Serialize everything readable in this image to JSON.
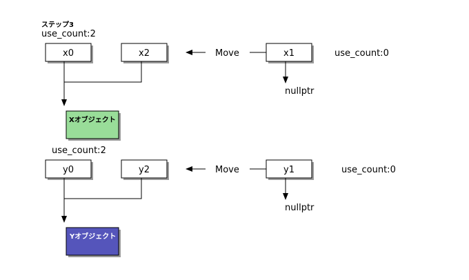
{
  "step_label": "ステップ3",
  "groups": [
    {
      "use_count": "use_count:2",
      "ptr_a": "x0",
      "ptr_b": "x2",
      "move_label": "Move",
      "src": "x1",
      "src_use_count": "use_count:0",
      "nullptr_label": "nullptr",
      "object_label": "Xオブジェクト",
      "object_color": "#99dd99"
    },
    {
      "use_count": "use_count:2",
      "ptr_a": "y0",
      "ptr_b": "y2",
      "move_label": "Move",
      "src": "y1",
      "src_use_count": "use_count:0",
      "nullptr_label": "nullptr",
      "object_label": "Yオブジェクト",
      "object_color": "#5555bb"
    }
  ]
}
